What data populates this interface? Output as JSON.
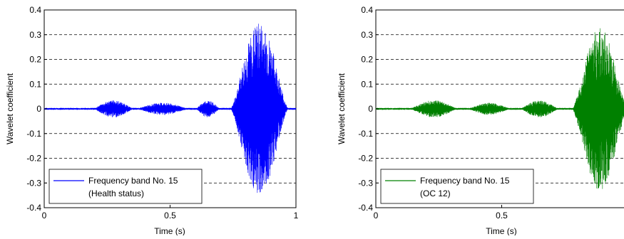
{
  "chart_data": [
    {
      "type": "line",
      "title": "",
      "xlabel": "Time (s)",
      "ylabel": "Wavelet coefficient",
      "xlim": [
        0,
        1
      ],
      "ylim": [
        -0.4,
        0.4
      ],
      "xticks": [
        0,
        0.5,
        1
      ],
      "xtick_labels": [
        "0",
        "0.5",
        "1"
      ],
      "yticks": [
        0.4,
        0.3,
        0.2,
        0.1,
        0,
        -0.1,
        -0.2,
        -0.3,
        -0.4
      ],
      "ytick_labels": [
        "0.4",
        "0.3",
        "0.2",
        "0.1",
        "0",
        "-0.1",
        "-0.2",
        "-0.3",
        "-0.4"
      ],
      "grid": "horizontal dashed",
      "legend_position": "bottom-left",
      "color": "#0000ff",
      "series": [
        {
          "name": "Frequency band No. 15 (Health status)",
          "legend_line1": "Frequency band No. 15",
          "legend_line2": "(Health status)",
          "bursts": [
            {
              "t_start": 0.19,
              "t_end": 0.36,
              "peak": 0.035
            },
            {
              "t_start": 0.36,
              "t_end": 0.58,
              "peak": 0.025
            },
            {
              "t_start": 0.6,
              "t_end": 0.7,
              "peak": 0.035
            },
            {
              "t_start": 0.74,
              "t_end": 0.97,
              "peak": 0.35
            }
          ]
        }
      ]
    },
    {
      "type": "line",
      "title": "",
      "xlabel": "Time (s)",
      "ylabel": "Wavelet coefficient",
      "xlim": [
        0,
        1
      ],
      "ylim": [
        -0.4,
        0.4
      ],
      "xticks": [
        0,
        0.5
      ],
      "xtick_labels": [
        "0",
        "0.5"
      ],
      "yticks": [
        0.4,
        0.3,
        0.2,
        0.1,
        0,
        -0.1,
        -0.2,
        -0.3,
        -0.4
      ],
      "ytick_labels": [
        "0.4",
        "0.3",
        "0.2",
        "0.1",
        "0",
        "-0.1",
        "-0.2",
        "-0.3",
        "-0.4"
      ],
      "grid": "horizontal dashed",
      "legend_position": "bottom-left",
      "color": "#008000",
      "series": [
        {
          "name": "Frequency band No. 15 (OC 12)",
          "legend_line1": "Frequency band No. 15",
          "legend_line2": "(OC 12)",
          "bursts": [
            {
              "t_start": 0.13,
              "t_end": 0.33,
              "peak": 0.035
            },
            {
              "t_start": 0.36,
              "t_end": 0.54,
              "peak": 0.025
            },
            {
              "t_start": 0.57,
              "t_end": 0.73,
              "peak": 0.035
            },
            {
              "t_start": 0.78,
              "t_end": 1.0,
              "peak": 0.33
            }
          ]
        }
      ]
    }
  ]
}
